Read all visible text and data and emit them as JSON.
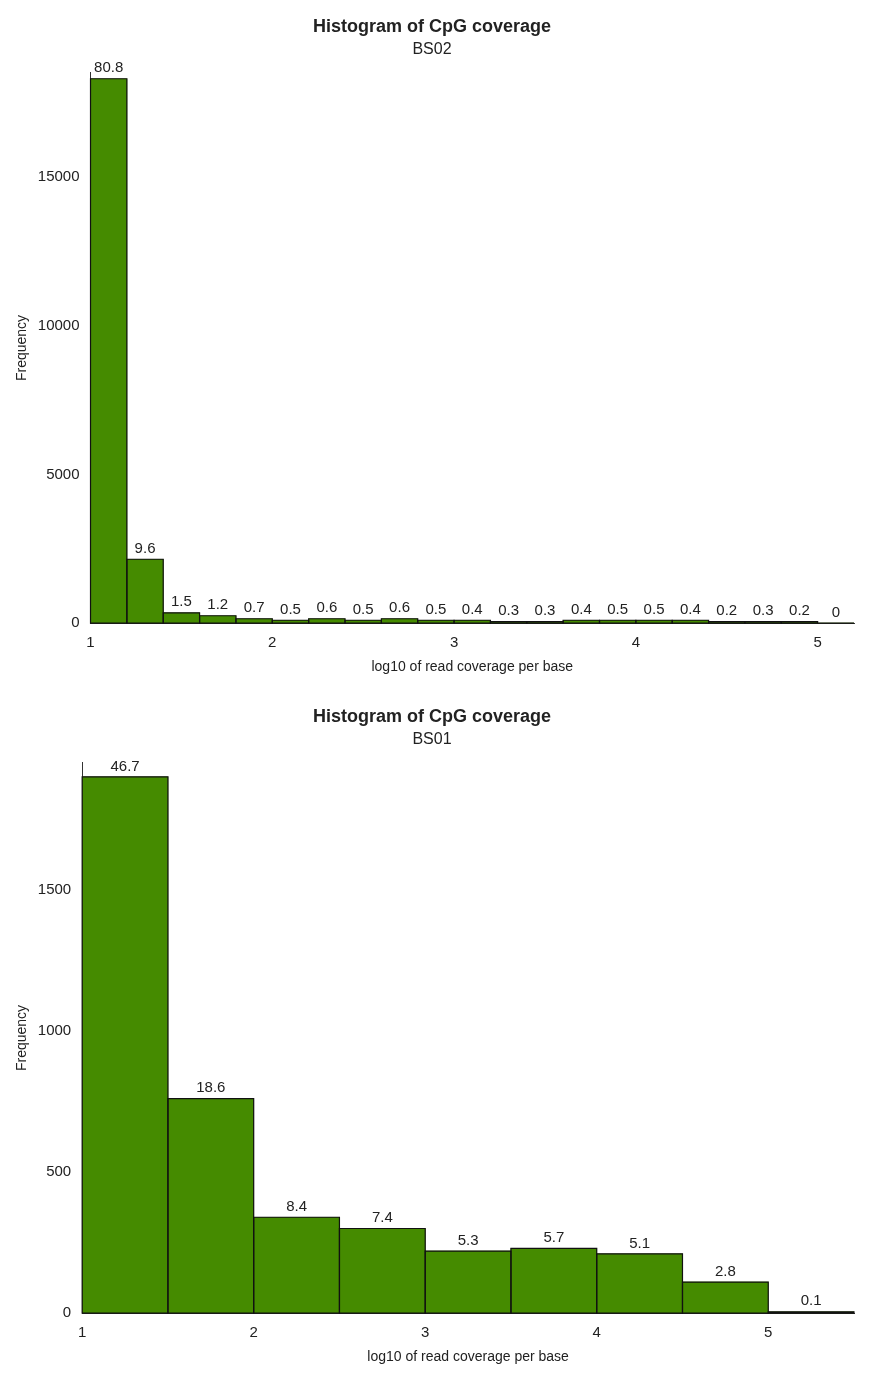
{
  "chart_data": [
    {
      "type": "histogram",
      "title": "Histogram of CpG coverage",
      "subtitle": "BS02",
      "xlabel": "log10 of read coverage per base",
      "ylabel": "Frequency",
      "color": "#458b00",
      "bins": [
        1,
        1.2,
        1.4,
        1.6,
        1.8,
        2,
        2.2,
        2.4,
        2.6,
        2.8,
        3,
        3.2,
        3.4,
        3.6,
        3.8,
        4,
        4.2,
        4.4,
        4.6,
        4.8,
        5,
        5.2
      ],
      "values": [
        18300,
        2150,
        350,
        250,
        150,
        100,
        150,
        100,
        150,
        100,
        100,
        50,
        50,
        100,
        100,
        100,
        100,
        50,
        50,
        50,
        0
      ],
      "annotations": [
        {
          "text": "80.8",
          "x": 1.1,
          "y": 18300
        },
        {
          "text": "9.6",
          "x": 1.3,
          "y": 2150
        },
        {
          "text": "1.5",
          "x": 1.5,
          "y": 350
        },
        {
          "text": "1.2",
          "x": 1.7,
          "y": 250
        },
        {
          "text": "0.7",
          "x": 1.9,
          "y": 150
        },
        {
          "text": "0.5",
          "x": 2.1,
          "y": 100
        },
        {
          "text": "0.6",
          "x": 2.3,
          "y": 150
        },
        {
          "text": "0.5",
          "x": 2.5,
          "y": 100
        },
        {
          "text": "0.6",
          "x": 2.7,
          "y": 150
        },
        {
          "text": "0.5",
          "x": 2.9,
          "y": 100
        },
        {
          "text": "0.4",
          "x": 3.1,
          "y": 100
        },
        {
          "text": "0.3",
          "x": 3.3,
          "y": 50
        },
        {
          "text": "0.3",
          "x": 3.5,
          "y": 50
        },
        {
          "text": "0.4",
          "x": 3.7,
          "y": 100
        },
        {
          "text": "0.5",
          "x": 3.9,
          "y": 100
        },
        {
          "text": "0.5",
          "x": 4.1,
          "y": 100
        },
        {
          "text": "0.4",
          "x": 4.3,
          "y": 100
        },
        {
          "text": "0.2",
          "x": 4.5,
          "y": 50
        },
        {
          "text": "0.3",
          "x": 4.7,
          "y": 50
        },
        {
          "text": "0.2",
          "x": 4.9,
          "y": 50
        },
        {
          "text": "0",
          "x": 5.1,
          "y": 0
        }
      ],
      "xlim": [
        1,
        5.2
      ],
      "xticks": [
        1,
        2,
        3,
        4,
        5
      ],
      "ylim": [
        0,
        18500
      ],
      "yticks": [
        0,
        5000,
        10000,
        15000
      ]
    },
    {
      "type": "histogram",
      "title": "Histogram of CpG coverage",
      "subtitle": "BS01",
      "xlabel": "log10 of read coverage per base",
      "ylabel": "Frequency",
      "color": "#458b00",
      "bins": [
        1,
        1.5,
        2,
        2.5,
        3,
        3.5,
        4,
        4.5,
        5,
        5.5
      ],
      "values": [
        1900,
        760,
        340,
        300,
        220,
        230,
        210,
        110,
        5
      ],
      "annotations": [
        {
          "text": "46.7",
          "x": 1.25,
          "y": 1900
        },
        {
          "text": "18.6",
          "x": 1.75,
          "y": 760
        },
        {
          "text": "8.4",
          "x": 2.25,
          "y": 340
        },
        {
          "text": "7.4",
          "x": 2.75,
          "y": 300
        },
        {
          "text": "5.3",
          "x": 3.25,
          "y": 220
        },
        {
          "text": "5.7",
          "x": 3.75,
          "y": 230
        },
        {
          "text": "5.1",
          "x": 4.25,
          "y": 210
        },
        {
          "text": "2.8",
          "x": 4.75,
          "y": 110
        },
        {
          "text": "0.1",
          "x": 5.25,
          "y": 5
        }
      ],
      "xlim": [
        1,
        5.5
      ],
      "xticks": [
        1,
        2,
        3,
        4,
        5
      ],
      "ylim": [
        0,
        1950
      ],
      "yticks": [
        0,
        500,
        1000,
        1500
      ]
    }
  ]
}
